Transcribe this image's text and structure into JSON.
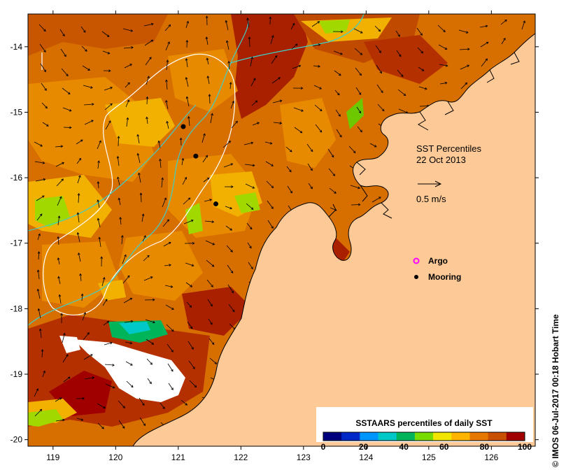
{
  "map": {
    "lon_range": [
      118.6,
      126.7
    ],
    "lat_range": [
      -20.1,
      -13.5
    ],
    "lon_ticks": [
      "119",
      "120",
      "121",
      "122",
      "123",
      "124",
      "125",
      "126"
    ],
    "lat_ticks": [
      "-14",
      "-15",
      "-16",
      "-17",
      "-18",
      "-19",
      "-20"
    ]
  },
  "info": {
    "title_line1": "SST Percentiles",
    "title_line2": "22 Oct 2013",
    "scale_label": "0.5 m/s"
  },
  "legend": {
    "argo_label": "Argo",
    "mooring_label": "Mooring",
    "argo_color": "#ff00ff",
    "mooring_color": "#000000"
  },
  "moorings": [
    {
      "lon": 121.08,
      "lat": -15.22
    },
    {
      "lon": 121.28,
      "lat": -15.67
    },
    {
      "lon": 121.6,
      "lat": -16.4
    }
  ],
  "colorbar": {
    "title": "SSTAARS percentiles of daily SST",
    "tick_labels": [
      "0",
      "20",
      "40",
      "60",
      "80",
      "100"
    ],
    "colors": [
      "#00007f",
      "#0028c8",
      "#0096ff",
      "#00c8c8",
      "#00b45a",
      "#78dc00",
      "#f0e600",
      "#ffb400",
      "#e67800",
      "#c85000",
      "#a00000"
    ]
  },
  "land_color": "#fdc996",
  "credit": "© IMOS 06-Jul-2017 00:18 Hobart Time"
}
